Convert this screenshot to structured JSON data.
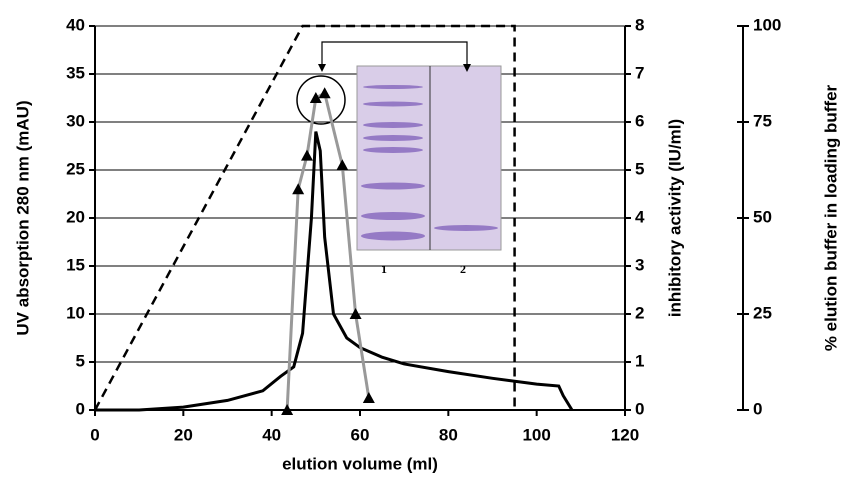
{
  "chart_data": {
    "type": "line",
    "xlabel": "elution volume (ml)",
    "ylabel": "UV absorption 280 nm (mAU)",
    "y2label": "inhibitory activity (IU/ml)",
    "y3label": "% elution buffer in loading buffer",
    "xlim": [
      0,
      120
    ],
    "xticks": [
      0,
      20,
      40,
      60,
      80,
      100,
      120
    ],
    "ylim": [
      0,
      40
    ],
    "yticks": [
      0,
      5,
      10,
      15,
      20,
      25,
      30,
      35,
      40
    ],
    "y2lim": [
      0,
      8
    ],
    "y2ticks": [
      0,
      1,
      2,
      3,
      4,
      5,
      6,
      7,
      8
    ],
    "y3lim": [
      0,
      100
    ],
    "y3ticks": [
      0,
      25,
      50,
      75,
      100
    ],
    "grid": true,
    "inset_labels": [
      "1",
      "2"
    ],
    "series": [
      {
        "color": "#000000",
        "dash": false,
        "marker": "none",
        "x": [
          0,
          10,
          20,
          30,
          38,
          42,
          45,
          47,
          49,
          50,
          51,
          52,
          54,
          57,
          60,
          65,
          70,
          80,
          90,
          100,
          105,
          106,
          108
        ],
        "values": [
          0,
          0,
          0.3,
          1,
          2,
          3.5,
          4.5,
          8,
          20,
          29,
          27,
          18,
          10,
          7.5,
          6.5,
          5.5,
          4.8,
          4,
          3.3,
          2.7,
          2.5,
          1.5,
          0
        ]
      },
      {
        "color": "#999999",
        "dash": false,
        "marker": "triangle",
        "axis": "y2",
        "x": [
          43.5,
          46,
          48,
          50,
          52,
          56,
          59,
          62
        ],
        "values": [
          0,
          4.6,
          5.3,
          6.5,
          6.6,
          5.1,
          2,
          0.25
        ]
      },
      {
        "color": "#000000",
        "dash": true,
        "marker": "none",
        "axis": "y3",
        "x": [
          0,
          47,
          95,
          95
        ],
        "values": [
          0,
          100,
          100,
          0
        ]
      }
    ]
  }
}
